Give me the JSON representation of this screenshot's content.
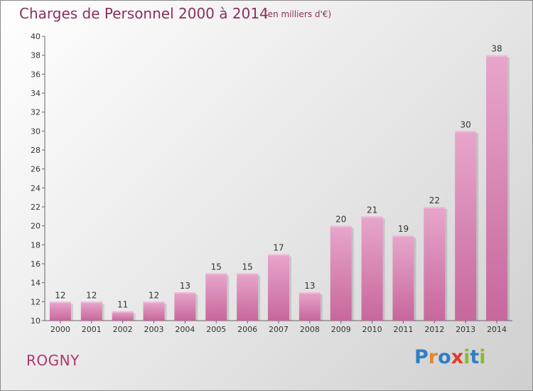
{
  "title": "Charges de Personnel 2000 à 2014",
  "unit_note": "(en milliers d'€)",
  "commune": "ROGNY",
  "logo": {
    "letters": [
      {
        "ch": "P",
        "color": "#2f7fc4"
      },
      {
        "ch": "r",
        "color": "#e2892a"
      },
      {
        "ch": "o",
        "color": "#2f7fc4"
      },
      {
        "ch": "x",
        "color": "#e23a2a"
      },
      {
        "ch": "i",
        "color": "#8cb92f"
      },
      {
        "ch": "t",
        "color": "#2f7fc4"
      },
      {
        "ch": "i",
        "color": "#8cb92f"
      }
    ]
  },
  "chart_data": {
    "type": "bar",
    "title": "Charges de Personnel 2000 à 2014",
    "subtitle": "(en milliers d'€)",
    "categories": [
      "2000",
      "2001",
      "2002",
      "2003",
      "2004",
      "2005",
      "2006",
      "2007",
      "2008",
      "2009",
      "2010",
      "2011",
      "2012",
      "2013",
      "2014"
    ],
    "values": [
      12,
      12,
      11,
      12,
      13,
      15,
      15,
      17,
      13,
      20,
      21,
      19,
      22,
      30,
      38
    ],
    "ylim": [
      10,
      40
    ],
    "yticks": [
      10,
      12,
      14,
      16,
      18,
      20,
      22,
      24,
      26,
      28,
      30,
      32,
      34,
      36,
      38,
      40
    ],
    "grid": false,
    "bar_color": "#c7679c",
    "bar_color_light": "#e8a6cc"
  }
}
